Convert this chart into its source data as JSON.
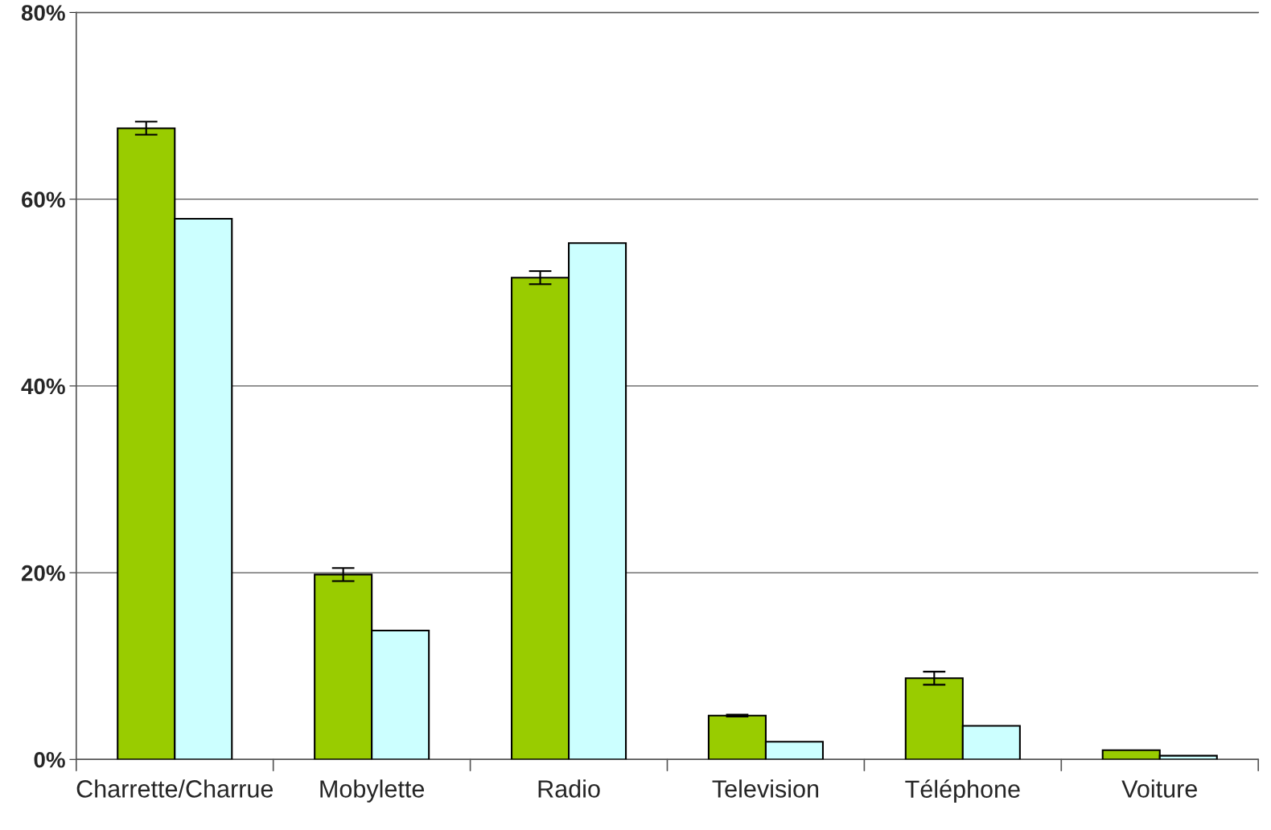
{
  "chart_data": {
    "type": "bar",
    "categories": [
      "Charrette/Charrue",
      "Mobylette",
      "Radio",
      "Television",
      "Téléphone",
      "Voiture"
    ],
    "series": [
      {
        "color": "#99cc00",
        "values": [
          67.6,
          19.8,
          51.6,
          4.7,
          8.7,
          1.0
        ],
        "errors": [
          0.7,
          0.7,
          0.7,
          0.1,
          0.7,
          null
        ]
      },
      {
        "color": "#ccffff",
        "values": [
          57.9,
          13.8,
          55.3,
          1.9,
          3.6,
          0.4
        ]
      }
    ],
    "ylim": [
      0,
      80
    ],
    "yticks": [
      {
        "value": 0,
        "label": "0%"
      },
      {
        "value": 20,
        "label": "20%"
      },
      {
        "value": 40,
        "label": "40%"
      },
      {
        "value": 60,
        "label": "60%"
      },
      {
        "value": 80,
        "label": "80%"
      }
    ],
    "grid": "y",
    "legend": false
  }
}
